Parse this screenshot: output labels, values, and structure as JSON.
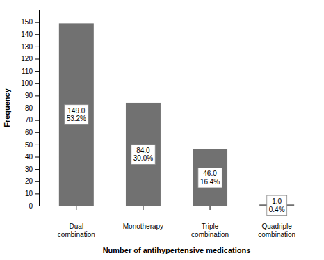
{
  "chart_data": {
    "type": "bar",
    "categories": [
      "Dual\ncombination",
      "Monotherapy",
      "Triple\ncombination",
      "Quadriple\ncombination"
    ],
    "values": [
      149,
      84,
      46,
      1
    ],
    "value_labels": [
      "149.0",
      "84.0",
      "46.0",
      "1.0"
    ],
    "percentages": [
      "53.2%",
      "30.0%",
      "16.4%",
      "0.4%"
    ],
    "data_labels": true,
    "color": "#717171",
    "xlabel": "Number of antihypertensive medications",
    "ylabel": "Frequency",
    "ylim": [
      0,
      160
    ],
    "yticks": [
      0,
      10,
      20,
      30,
      40,
      50,
      60,
      70,
      80,
      90,
      100,
      110,
      120,
      130,
      140,
      150
    ],
    "grid": false
  }
}
